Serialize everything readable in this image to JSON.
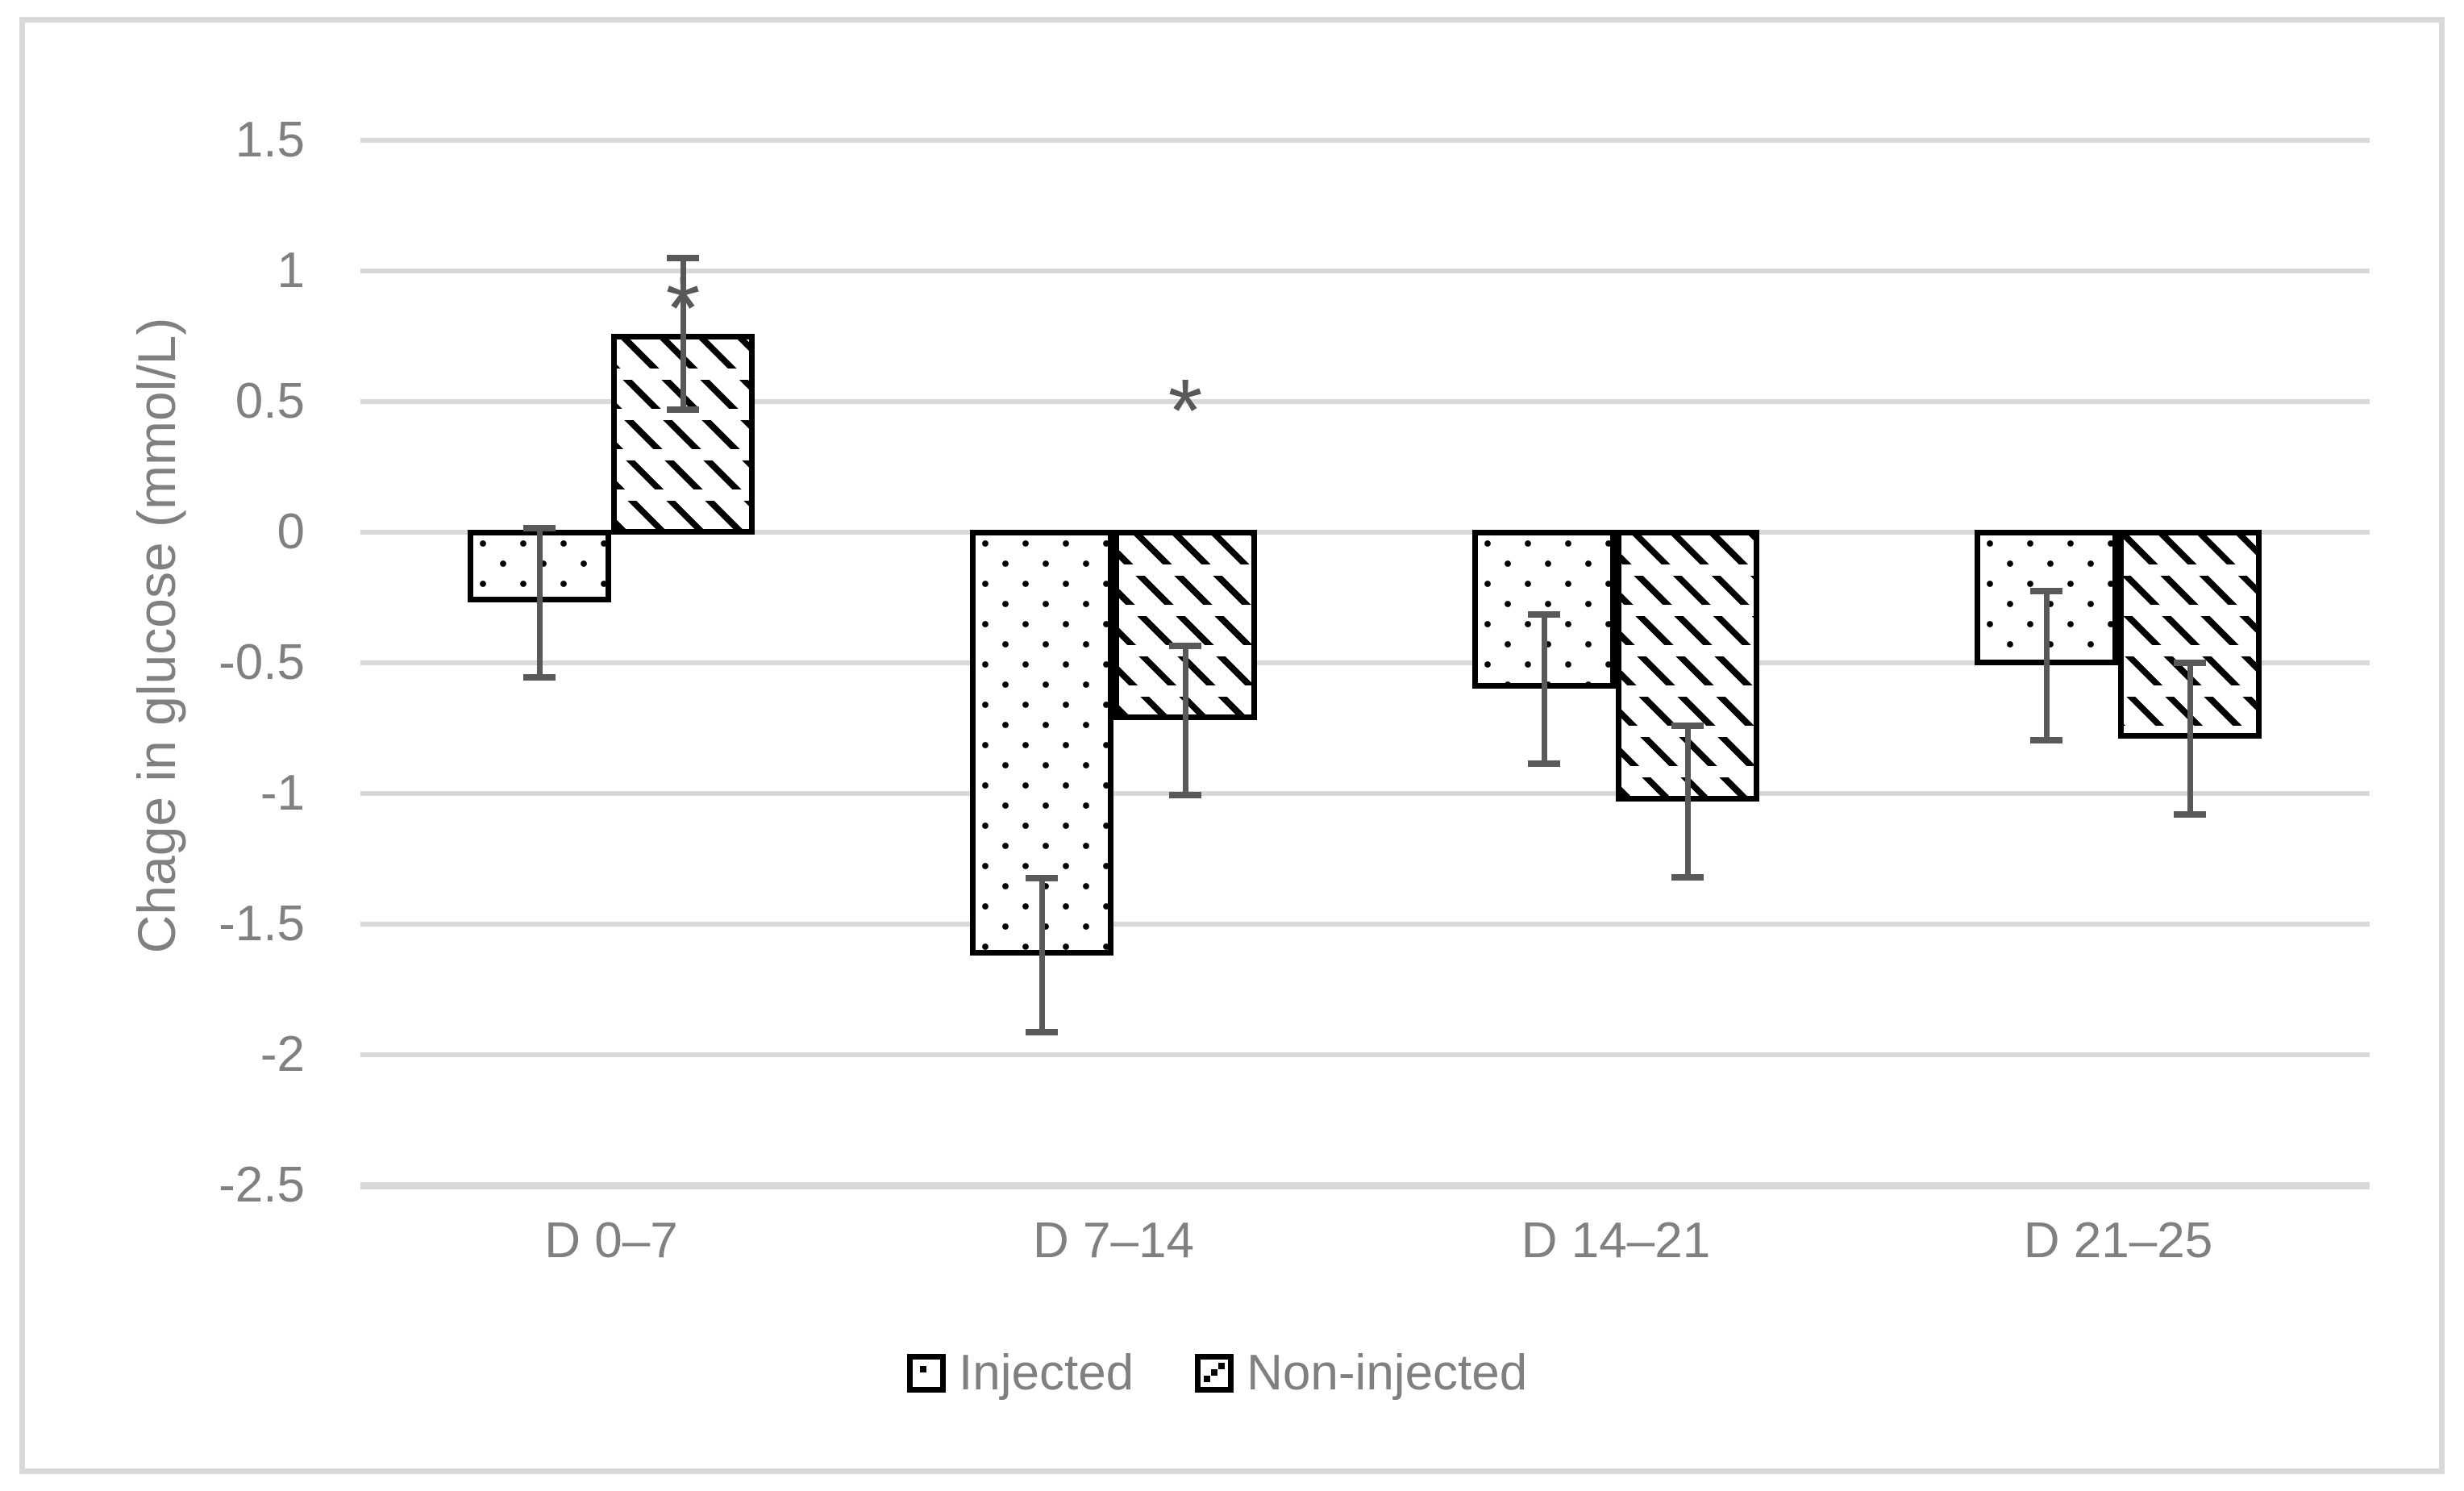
{
  "chart_data": {
    "type": "bar",
    "title": "",
    "ylabel": "Chage in glucose (mmol/L)",
    "xlabel": "",
    "ylim": [
      -2.5,
      1.5
    ],
    "ytick_step": 0.5,
    "yticks": [
      "1.5",
      "1",
      "0.5",
      "0",
      "-0.5",
      "-1",
      "-1.5",
      "-2",
      "-2.5"
    ],
    "categories": [
      "D 0–7",
      "D 7–14",
      "D 14–21",
      "D 21–25"
    ],
    "series": [
      {
        "name": "Injected",
        "pattern": "dots",
        "values": [
          -0.27,
          -1.62,
          -0.6,
          -0.51
        ],
        "errors": [
          0.285,
          0.295,
          0.285,
          0.285
        ]
      },
      {
        "name": "Non-injected",
        "pattern": "diagonal-dashes",
        "values": [
          0.76,
          -0.72,
          -1.03,
          -0.79
        ],
        "errors": [
          0.29,
          0.285,
          0.29,
          0.29
        ]
      }
    ],
    "annotations": [
      {
        "symbol": "*",
        "category": "D 0–7",
        "series": "Non-injected",
        "y": 0.95
      },
      {
        "symbol": "*",
        "category": "D 7–14",
        "series": "Non-injected",
        "y": 0.56
      }
    ],
    "legend_position": "bottom",
    "grid": "horizontal",
    "bars_baseline": 0
  },
  "colors": {
    "background": "#ffffff",
    "figure_border": "#d9d9d9",
    "gridline": "#d9d9d9",
    "axis_text": "#808080",
    "error_bar": "#595959",
    "annotation": "#595959",
    "bar_border": "#000000",
    "bar_fill": "#ffffff"
  }
}
